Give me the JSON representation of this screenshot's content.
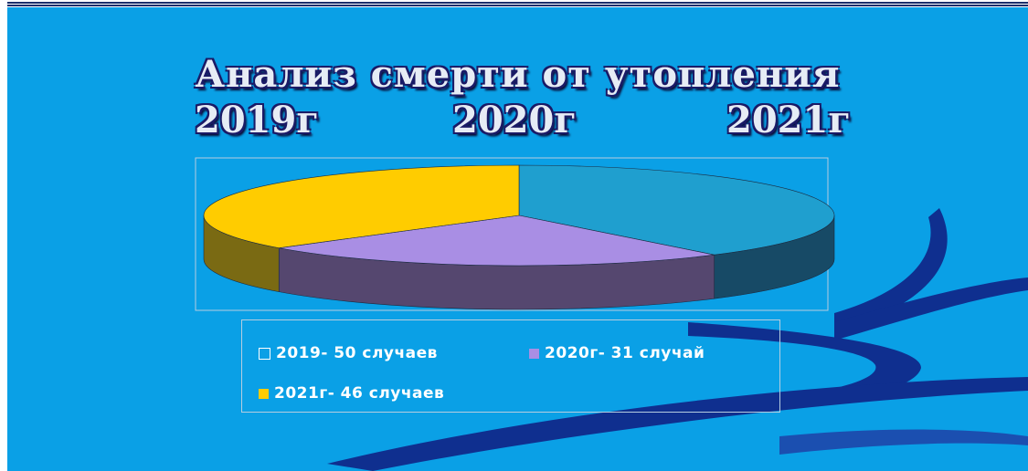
{
  "title": {
    "line1": "Анализ   смерти от утопления",
    "years": [
      "2019г",
      "2020г",
      "2021г"
    ]
  },
  "colors": {
    "background": "#0aa0e6",
    "swoosh": "#0f2f8f",
    "title_text": "#e6ecf5"
  },
  "chart_data": {
    "type": "pie",
    "style": "3d",
    "grid": false,
    "legend_position": "bottom",
    "title": "",
    "series": [
      {
        "name": "2019- 50 случаев",
        "value": 50,
        "color": "#1f9fcf",
        "side_color": "#174a66"
      },
      {
        "name": "2020г- 31 случай",
        "value": 31,
        "color": "#a98ee4",
        "side_color": "#55476f"
      },
      {
        "name": "2021г- 46 случаев",
        "value": 46,
        "color": "#ffcc00",
        "side_color": "#7a6a13"
      }
    ],
    "legend_swatch_colors": [
      "#0aa0e6",
      "#a98ee4",
      "#ffcc00"
    ]
  }
}
